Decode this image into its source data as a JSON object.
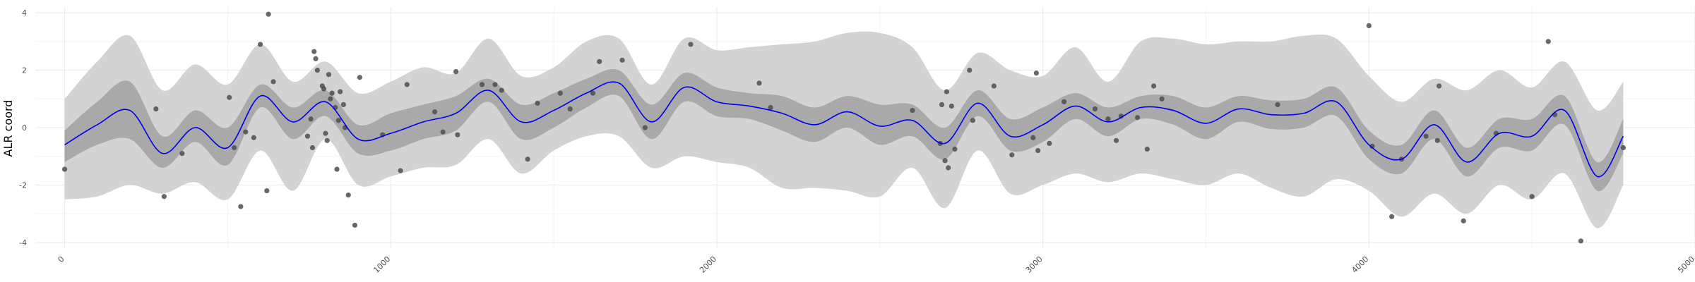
{
  "chart_data": {
    "type": "area",
    "title": "",
    "xlabel": "",
    "ylabel": "ALR coord",
    "xlim": [
      -90,
      5000
    ],
    "ylim": [
      -4.2,
      4.2
    ],
    "grid": true,
    "legend": "none",
    "x_ticks": [
      0,
      1000,
      2000,
      3000,
      4000,
      5000
    ],
    "x_tick_labels": [
      "0",
      "1000",
      "2000",
      "3000",
      "4000",
      "5000"
    ],
    "y_ticks": [
      -4,
      -2,
      0,
      2,
      4
    ],
    "y_tick_labels": [
      "-4",
      "-2",
      "0",
      "2",
      "4"
    ],
    "colors": {
      "mean_line": "#0000ee",
      "inner_band": "#a9a9a9",
      "outer_band": "#d3d3d3",
      "points": "#4d4d4d"
    },
    "series": [
      {
        "kind": "mean",
        "x": [
          0,
          100,
          200,
          300,
          400,
          500,
          600,
          700,
          800,
          900,
          1000,
          1100,
          1200,
          1300,
          1400,
          1500,
          1600,
          1700,
          1800,
          1900,
          2000,
          2100,
          2200,
          2300,
          2400,
          2500,
          2600,
          2700,
          2800,
          2900,
          3000,
          3100,
          3200,
          3300,
          3400,
          3500,
          3600,
          3700,
          3800,
          3900,
          4000,
          4100,
          4200,
          4300,
          4400,
          4500,
          4600,
          4700,
          4780
        ],
        "y": [
          -0.6,
          0.1,
          0.6,
          -0.9,
          0.0,
          -0.7,
          1.1,
          0.2,
          0.9,
          -0.4,
          -0.2,
          0.2,
          0.5,
          1.3,
          0.2,
          0.6,
          1.2,
          1.55,
          0.2,
          1.4,
          0.9,
          0.75,
          0.5,
          0.1,
          0.55,
          0.05,
          0.25,
          -0.55,
          0.85,
          -0.3,
          0.1,
          0.75,
          0.2,
          0.7,
          0.6,
          0.15,
          0.65,
          0.45,
          0.5,
          0.9,
          -0.6,
          -1.1,
          0.1,
          -1.2,
          -0.2,
          -0.3,
          0.6,
          -1.7,
          -0.3
        ]
      },
      {
        "kind": "inner_band",
        "x": [
          0,
          100,
          200,
          300,
          400,
          500,
          600,
          700,
          800,
          900,
          1000,
          1100,
          1200,
          1300,
          1400,
          1500,
          1600,
          1700,
          1800,
          1900,
          2000,
          2100,
          2200,
          2300,
          2400,
          2500,
          2600,
          2700,
          2800,
          2900,
          3000,
          3100,
          3200,
          3300,
          3400,
          3500,
          3600,
          3700,
          3800,
          3900,
          4000,
          4100,
          4200,
          4300,
          4400,
          4500,
          4600,
          4700,
          4780
        ],
        "upper": [
          -0.1,
          0.9,
          1.6,
          -0.3,
          0.6,
          0.0,
          1.5,
          0.7,
          1.3,
          0.1,
          0.5,
          0.8,
          1.1,
          1.7,
          0.8,
          1.2,
          1.7,
          2.0,
          0.8,
          1.9,
          1.4,
          1.2,
          1.1,
          0.7,
          1.1,
          0.8,
          0.8,
          0.0,
          1.3,
          0.3,
          0.7,
          1.2,
          0.7,
          1.1,
          1.1,
          0.7,
          1.1,
          0.95,
          1.0,
          1.4,
          -0.1,
          -0.6,
          0.6,
          -0.7,
          0.3,
          0.3,
          1.1,
          -1.2,
          0.3
        ],
        "lower": [
          -1.2,
          -0.6,
          -0.4,
          -1.4,
          -0.5,
          -1.3,
          0.7,
          -0.4,
          0.4,
          -0.9,
          -0.8,
          -0.4,
          -0.1,
          0.9,
          -0.4,
          0.0,
          0.7,
          1.1,
          -0.4,
          0.9,
          0.4,
          0.3,
          -0.1,
          -0.5,
          0.0,
          -0.6,
          -0.3,
          -1.1,
          0.4,
          -0.8,
          -0.5,
          0.3,
          -0.3,
          0.3,
          0.1,
          -0.4,
          0.2,
          -0.05,
          0.0,
          0.4,
          -1.1,
          -1.6,
          -0.4,
          -1.7,
          -0.7,
          -0.8,
          0.1,
          -2.2,
          -0.9
        ]
      },
      {
        "kind": "outer_band",
        "x": [
          0,
          100,
          200,
          300,
          400,
          500,
          600,
          700,
          800,
          900,
          1000,
          1100,
          1200,
          1300,
          1400,
          1500,
          1600,
          1700,
          1800,
          1900,
          2000,
          2100,
          2200,
          2300,
          2400,
          2500,
          2600,
          2700,
          2800,
          2900,
          3000,
          3100,
          3200,
          3300,
          3400,
          3500,
          3600,
          3700,
          3800,
          3900,
          4000,
          4100,
          4200,
          4300,
          4400,
          4500,
          4600,
          4700,
          4780
        ],
        "upper": [
          1.0,
          2.3,
          3.2,
          1.3,
          2.2,
          1.5,
          2.9,
          1.6,
          2.3,
          1.2,
          1.6,
          2.1,
          1.9,
          3.1,
          1.8,
          2.1,
          3.0,
          3.1,
          1.5,
          3.1,
          2.7,
          2.8,
          2.9,
          3.0,
          3.3,
          3.3,
          2.8,
          1.3,
          2.6,
          2.0,
          1.8,
          2.8,
          1.6,
          3.0,
          3.1,
          2.9,
          3.0,
          3.0,
          3.2,
          3.1,
          1.8,
          0.9,
          1.7,
          1.3,
          2.0,
          1.4,
          2.3,
          0.6,
          1.6
        ],
        "lower": [
          -2.5,
          -2.4,
          -2.0,
          -2.3,
          -1.9,
          -2.5,
          -0.8,
          -2.2,
          -0.4,
          -2.0,
          -1.7,
          -1.4,
          -1.3,
          -0.4,
          -1.6,
          -0.8,
          -0.3,
          -0.3,
          -1.4,
          -1.0,
          -1.2,
          -1.4,
          -2.1,
          -2.1,
          -2.2,
          -2.4,
          -1.4,
          -2.8,
          -0.8,
          -2.3,
          -2.0,
          -1.6,
          -1.9,
          -1.6,
          -1.8,
          -2.0,
          -1.6,
          -2.1,
          -2.4,
          -1.8,
          -2.2,
          -3.1,
          -2.3,
          -3.0,
          -2.0,
          -2.5,
          -1.6,
          -3.5,
          -2.0
        ]
      }
    ],
    "points": [
      {
        "x": 0,
        "y": -1.45
      },
      {
        "x": 280,
        "y": 0.65
      },
      {
        "x": 305,
        "y": -2.4
      },
      {
        "x": 360,
        "y": -0.9
      },
      {
        "x": 505,
        "y": 1.05
      },
      {
        "x": 520,
        "y": -0.7
      },
      {
        "x": 540,
        "y": -2.75
      },
      {
        "x": 555,
        "y": -0.15
      },
      {
        "x": 580,
        "y": -0.35
      },
      {
        "x": 600,
        "y": 2.9
      },
      {
        "x": 620,
        "y": -2.2
      },
      {
        "x": 625,
        "y": 3.95
      },
      {
        "x": 640,
        "y": 1.6
      },
      {
        "x": 745,
        "y": -0.3
      },
      {
        "x": 755,
        "y": 0.3
      },
      {
        "x": 760,
        "y": -0.7
      },
      {
        "x": 765,
        "y": 2.65
      },
      {
        "x": 770,
        "y": 2.4
      },
      {
        "x": 775,
        "y": 2.0
      },
      {
        "x": 790,
        "y": 1.45
      },
      {
        "x": 795,
        "y": 1.35
      },
      {
        "x": 800,
        "y": -0.2
      },
      {
        "x": 805,
        "y": -0.45
      },
      {
        "x": 810,
        "y": 1.85
      },
      {
        "x": 815,
        "y": 1.0
      },
      {
        "x": 820,
        "y": 1.2
      },
      {
        "x": 830,
        "y": 0.7
      },
      {
        "x": 835,
        "y": -1.45
      },
      {
        "x": 840,
        "y": 0.25
      },
      {
        "x": 845,
        "y": 1.25
      },
      {
        "x": 855,
        "y": 0.8
      },
      {
        "x": 860,
        "y": 0.0
      },
      {
        "x": 870,
        "y": -2.35
      },
      {
        "x": 890,
        "y": -3.4
      },
      {
        "x": 905,
        "y": 1.75
      },
      {
        "x": 975,
        "y": -0.25
      },
      {
        "x": 1030,
        "y": -1.5
      },
      {
        "x": 1050,
        "y": 1.5
      },
      {
        "x": 1135,
        "y": 0.55
      },
      {
        "x": 1160,
        "y": -0.15
      },
      {
        "x": 1200,
        "y": 1.95
      },
      {
        "x": 1205,
        "y": -0.25
      },
      {
        "x": 1280,
        "y": 1.5
      },
      {
        "x": 1320,
        "y": 1.5
      },
      {
        "x": 1340,
        "y": 1.3
      },
      {
        "x": 1420,
        "y": -1.1
      },
      {
        "x": 1450,
        "y": 0.85
      },
      {
        "x": 1520,
        "y": 1.2
      },
      {
        "x": 1550,
        "y": 0.65
      },
      {
        "x": 1620,
        "y": 1.2
      },
      {
        "x": 1640,
        "y": 2.3
      },
      {
        "x": 1710,
        "y": 2.35
      },
      {
        "x": 1780,
        "y": 0.0
      },
      {
        "x": 1920,
        "y": 2.9
      },
      {
        "x": 2130,
        "y": 1.55
      },
      {
        "x": 2165,
        "y": 0.7
      },
      {
        "x": 2600,
        "y": 0.6
      },
      {
        "x": 2685,
        "y": -0.55
      },
      {
        "x": 2690,
        "y": 0.8
      },
      {
        "x": 2700,
        "y": -1.15
      },
      {
        "x": 2705,
        "y": 1.25
      },
      {
        "x": 2710,
        "y": -1.4
      },
      {
        "x": 2720,
        "y": 0.75
      },
      {
        "x": 2730,
        "y": -0.75
      },
      {
        "x": 2775,
        "y": 2.0
      },
      {
        "x": 2785,
        "y": 0.25
      },
      {
        "x": 2850,
        "y": 1.45
      },
      {
        "x": 2905,
        "y": -0.95
      },
      {
        "x": 2970,
        "y": -0.35
      },
      {
        "x": 2980,
        "y": 1.9
      },
      {
        "x": 2985,
        "y": -0.8
      },
      {
        "x": 3020,
        "y": -0.55
      },
      {
        "x": 3065,
        "y": 0.9
      },
      {
        "x": 3160,
        "y": 0.65
      },
      {
        "x": 3200,
        "y": 0.3
      },
      {
        "x": 3225,
        "y": -0.45
      },
      {
        "x": 3240,
        "y": 0.4
      },
      {
        "x": 3290,
        "y": 0.35
      },
      {
        "x": 3320,
        "y": -0.75
      },
      {
        "x": 3340,
        "y": 1.45
      },
      {
        "x": 3365,
        "y": 1.0
      },
      {
        "x": 3720,
        "y": 0.8
      },
      {
        "x": 4000,
        "y": 3.55
      },
      {
        "x": 4010,
        "y": -0.65
      },
      {
        "x": 4070,
        "y": -3.1
      },
      {
        "x": 4100,
        "y": -1.1
      },
      {
        "x": 4175,
        "y": -0.3
      },
      {
        "x": 4215,
        "y": 1.45
      },
      {
        "x": 4210,
        "y": -0.45
      },
      {
        "x": 4290,
        "y": -3.25
      },
      {
        "x": 4390,
        "y": -0.2
      },
      {
        "x": 4500,
        "y": -2.4
      },
      {
        "x": 4550,
        "y": 3.0
      },
      {
        "x": 4570,
        "y": 0.45
      },
      {
        "x": 4650,
        "y": -3.95
      },
      {
        "x": 4780,
        "y": -0.7
      }
    ]
  }
}
